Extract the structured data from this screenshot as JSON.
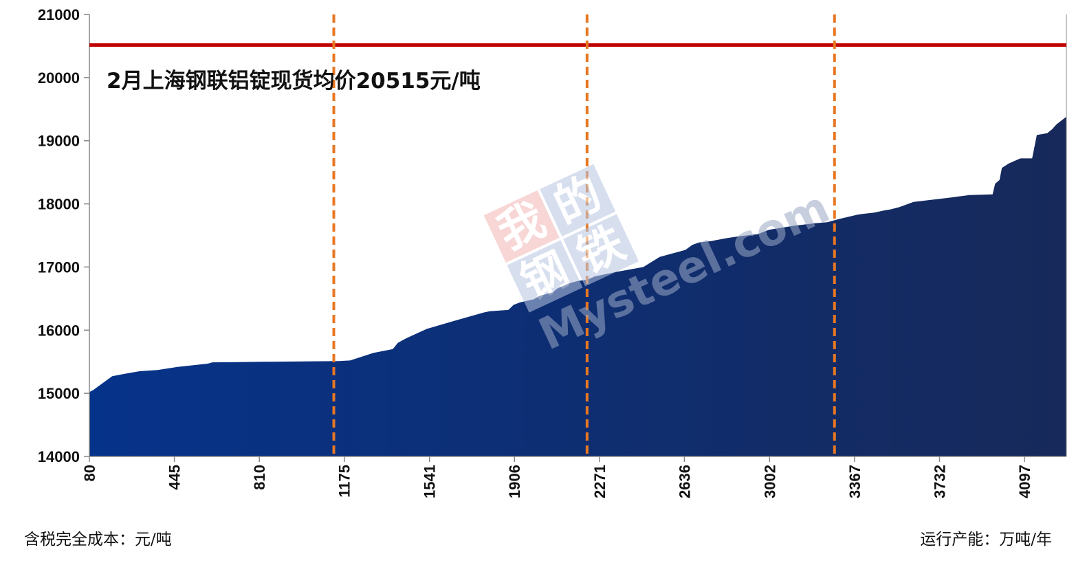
{
  "chart_data": {
    "type": "area",
    "xlabel": "运行产能：万吨/年",
    "ylabel": "含税完全成本：元/吨",
    "annotation": "2月上海钢联铝锭现货均价20515元/吨",
    "reference_line": {
      "value": 20515,
      "color": "#c00000"
    },
    "vertical_markers": {
      "x": [
        1130,
        2218,
        3281
      ],
      "color": "#e87722"
    },
    "xlim": [
      80,
      4277
    ],
    "ylim": [
      14000,
      21000
    ],
    "x_ticks": [
      80,
      445,
      810,
      1175,
      1541,
      1906,
      2271,
      2636,
      3002,
      3367,
      3732,
      4097
    ],
    "y_ticks": [
      14000,
      15000,
      16000,
      17000,
      18000,
      19000,
      20000,
      21000
    ],
    "grid": false,
    "fill_colors": [
      "#06338a",
      "#17295a"
    ],
    "series": [
      {
        "x": [
          80,
          96,
          178,
          232,
          296,
          373,
          462,
          589,
          608,
          720,
          850,
          1000,
          1150,
          1200,
          1300,
          1384,
          1405,
          1440,
          1470,
          1530,
          1650,
          1774,
          1800,
          1880,
          1902,
          1930,
          1990,
          2010,
          2070,
          2090,
          2140,
          2180,
          2220,
          2250,
          2340,
          2400,
          2460,
          2530,
          2580,
          2610,
          2640,
          2670,
          2700,
          2750,
          2820,
          2880,
          2950,
          3000,
          3100,
          3190,
          3250,
          3300,
          3380,
          3400,
          3450,
          3500,
          3520,
          3560,
          3620,
          3780,
          3860,
          3960,
          3971,
          3990,
          4000,
          4030,
          4060,
          4080,
          4100,
          4130,
          4130,
          4150,
          4195,
          4215,
          4235,
          4280
        ],
        "y": [
          15020,
          15050,
          15270,
          15310,
          15350,
          15370,
          15420,
          15470,
          15490,
          15495,
          15500,
          15505,
          15510,
          15520,
          15640,
          15700,
          15800,
          15870,
          15920,
          16020,
          16150,
          16280,
          16300,
          16320,
          16400,
          16440,
          16490,
          16540,
          16600,
          16660,
          16740,
          16780,
          16800,
          16850,
          16920,
          16960,
          17000,
          17160,
          17210,
          17240,
          17270,
          17350,
          17390,
          17410,
          17460,
          17490,
          17520,
          17590,
          17650,
          17690,
          17710,
          17760,
          17830,
          17840,
          17860,
          17900,
          17910,
          17950,
          18030,
          18100,
          18140,
          18150,
          18320,
          18380,
          18570,
          18640,
          18690,
          18720,
          18720,
          18720,
          18720,
          19090,
          19120,
          19180,
          19260,
          19380
        ]
      }
    ]
  },
  "watermark": {
    "cjk_top": [
      "我",
      "的"
    ],
    "cjk_bottom": [
      "钢",
      "铁"
    ],
    "latin": "Mysteel.com"
  }
}
